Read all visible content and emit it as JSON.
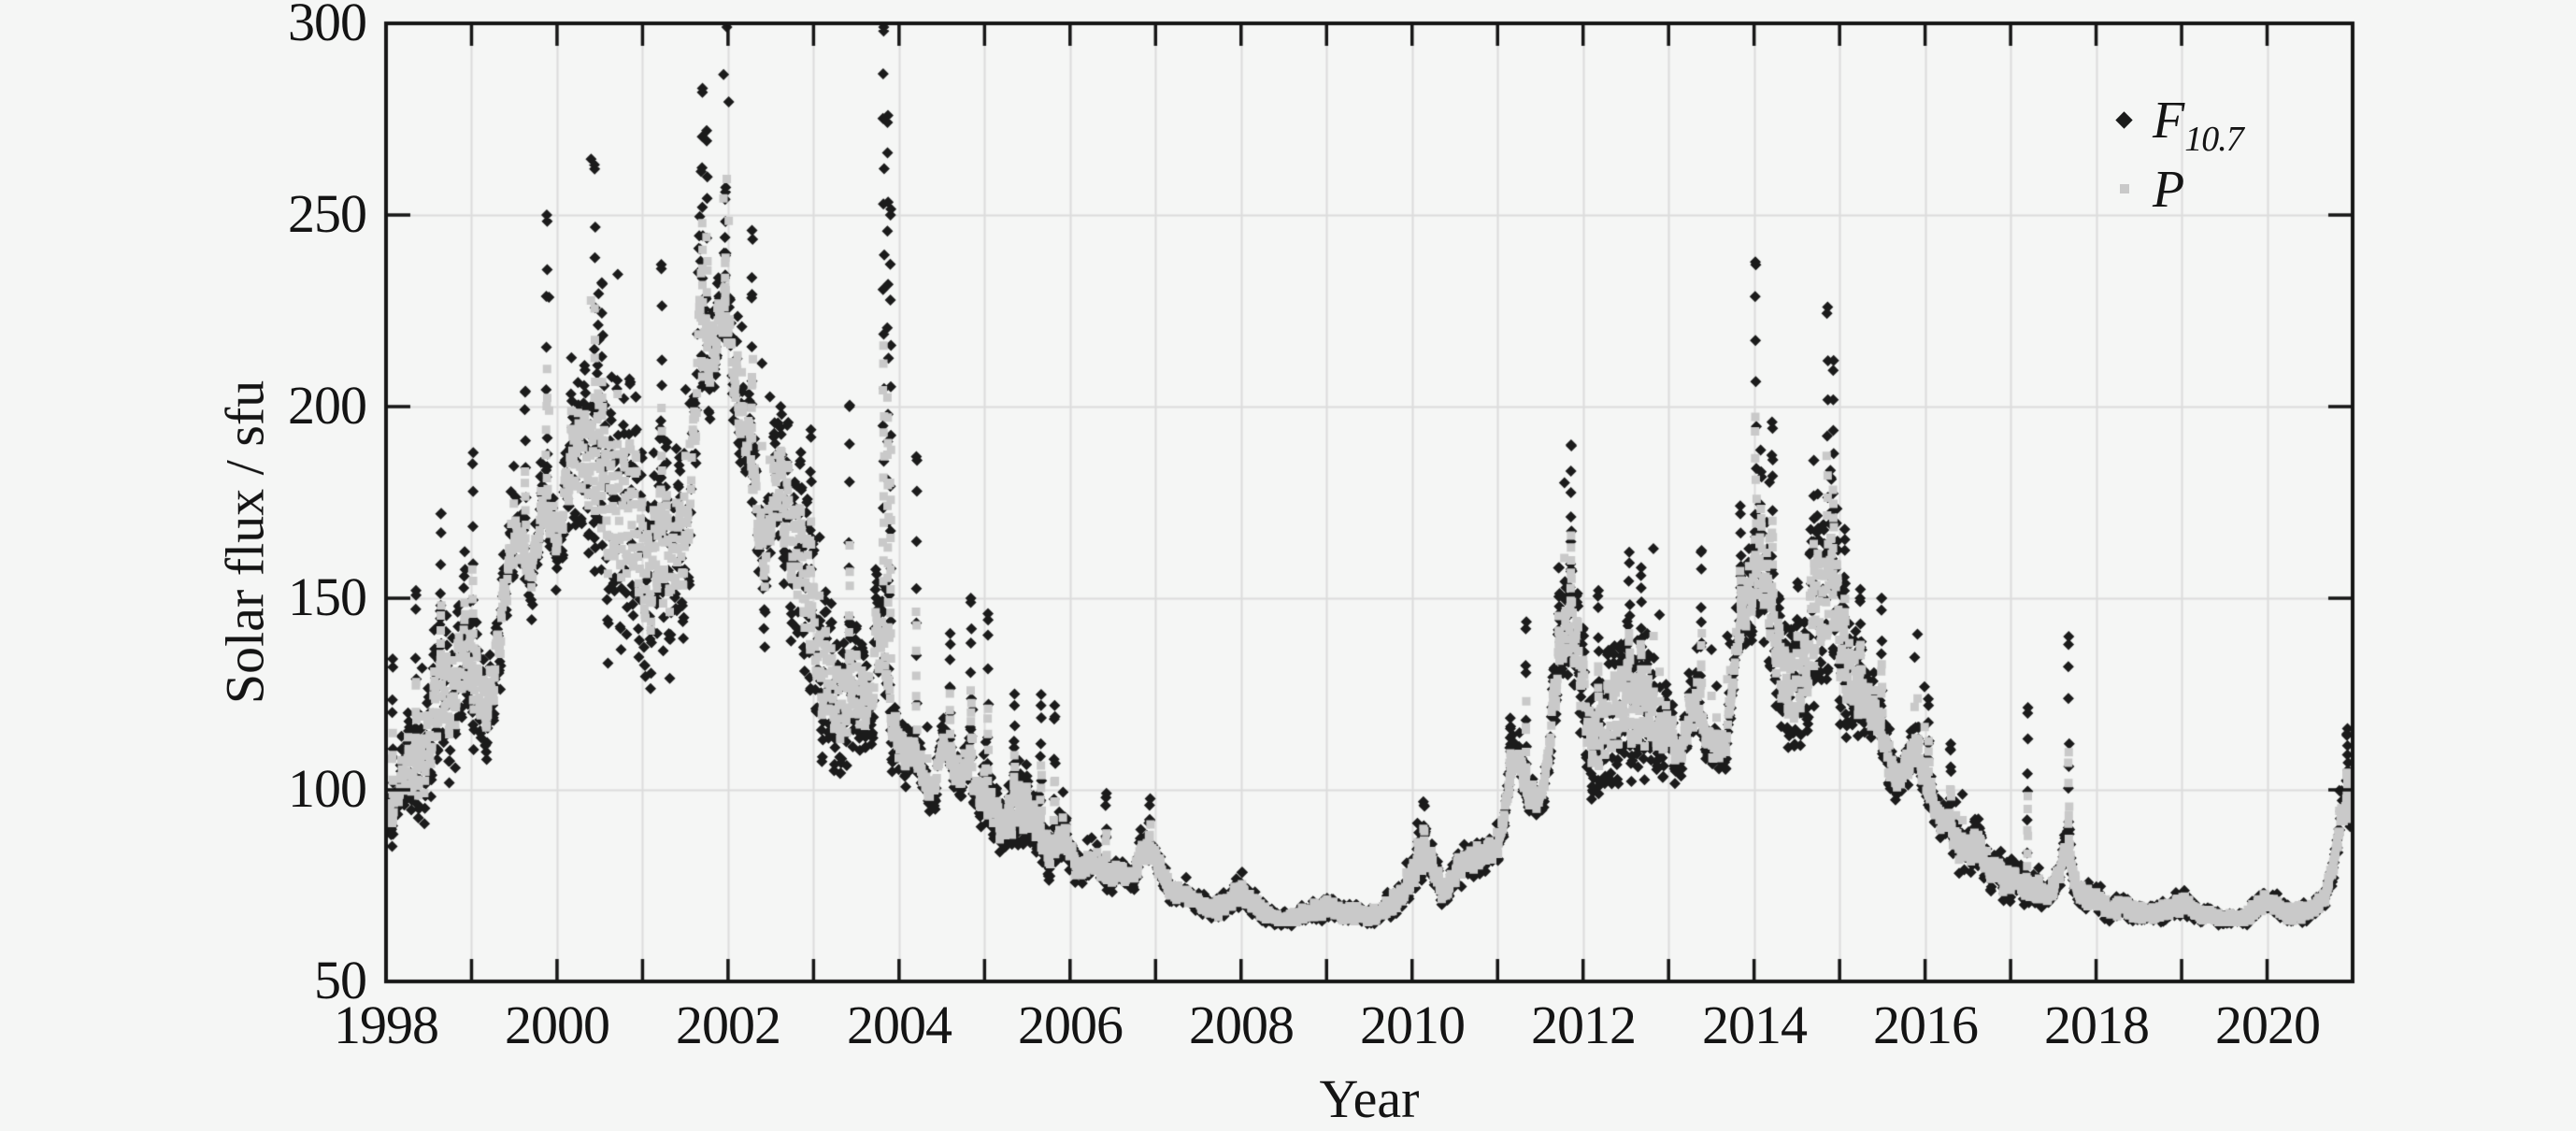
{
  "page": {
    "background": "#f5f6f5"
  },
  "figure": {
    "xlabel": "Year",
    "ylabel": "Solar flux / sfu",
    "yticks": [
      "50",
      "100",
      "150",
      "200",
      "250",
      "300"
    ],
    "xticks": [
      "1998",
      "2000",
      "2002",
      "2004",
      "2006",
      "2008",
      "2010",
      "2012",
      "2014",
      "2016",
      "2018",
      "2020"
    ],
    "legend": [
      {
        "marker": "diamond-icon",
        "color": "#1b1b1b",
        "label_main": "F",
        "label_sub": "10.7"
      },
      {
        "marker": "square-icon",
        "color": "#c9c9c9",
        "label_main": "P",
        "label_sub": ""
      }
    ]
  },
  "chart_data": {
    "type": "scatter",
    "title": "",
    "xlabel": "Year",
    "ylabel": "Solar flux / sfu",
    "xlim": [
      1998,
      2021
    ],
    "ylim": [
      50,
      300
    ],
    "x_gridline_interval_years": 1,
    "y_gridline_interval": 50,
    "x_tick_label_interval_years": 2,
    "grid": true,
    "gridline_color": "#dcdcdc",
    "box_color": "#161616",
    "legend_position": "top-right",
    "series": [
      {
        "name": "F10.7",
        "marker": "diamond",
        "color": "#1b1b1b",
        "cadence": "daily values shown as dense scatter with 27-day rotational modulation",
        "monthly_mean": {
          "start_year": 1998.0,
          "step_years": 0.08333,
          "values": [
            95,
            92,
            102,
            108,
            106,
            104,
            112,
            124,
            130,
            118,
            128,
            142,
            130,
            128,
            118,
            126,
            142,
            158,
            164,
            170,
            152,
            160,
            178,
            174,
            160,
            176,
            190,
            186,
            192,
            180,
            200,
            164,
            182,
            166,
            178,
            174,
            162,
            148,
            164,
            174,
            150,
            170,
            152,
            184,
            230,
            208,
            214,
            226,
            226,
            204,
            194,
            192,
            178,
            150,
            174,
            184,
            178,
            160,
            168,
            152,
            144,
            126,
            134,
            122,
            118,
            130,
            128,
            124,
            114,
            150,
            138,
            114,
            114,
            108,
            112,
            106,
            100,
            98,
            116,
            110,
            102,
            104,
            112,
            96,
            100,
            96,
            92,
            88,
            98,
            94,
            96,
            92,
            90,
            80,
            86,
            90,
            84,
            80,
            78,
            82,
            80,
            78,
            76,
            80,
            78,
            76,
            86,
            84,
            82,
            78,
            74,
            72,
            74,
            72,
            70,
            70,
            68,
            70,
            70,
            72,
            74,
            71,
            70,
            68,
            67,
            66,
            66,
            66,
            67,
            68,
            68,
            68,
            69,
            69,
            68,
            67,
            68,
            67,
            67,
            67,
            69,
            70,
            72,
            73,
            77,
            83,
            85,
            79,
            74,
            73,
            79,
            81,
            81,
            83,
            83,
            85,
            83,
            92,
            110,
            110,
            98,
            98,
            96,
            104,
            128,
            136,
            150,
            140,
            130,
            108,
            112,
            118,
            122,
            118,
            130,
            118,
            122,
            122,
            120,
            110,
            122,
            108,
            110,
            120,
            128,
            112,
            112,
            112,
            108,
            128,
            146,
            148,
            154,
            168,
            150,
            140,
            130,
            122,
            134,
            124,
            142,
            152,
            148,
            158,
            142,
            130,
            126,
            128,
            120,
            122,
            114,
            106,
            102,
            104,
            110,
            112,
            102,
            98,
            92,
            92,
            90,
            84,
            84,
            86,
            84,
            78,
            80,
            76,
            76,
            78,
            74,
            74,
            74,
            72,
            74,
            78,
            90,
            74,
            72,
            72,
            72,
            70,
            68,
            70,
            70,
            68,
            68,
            68,
            68,
            68,
            68,
            70,
            70,
            70,
            68,
            67,
            67,
            67,
            66,
            66,
            66,
            66,
            68,
            70,
            72,
            70,
            69,
            68,
            68,
            68,
            68,
            70,
            72,
            76,
            88,
            100,
            94
          ]
        },
        "notable_daily_spikes_x_y": [
          [
            1998.08,
            132
          ],
          [
            1998.35,
            152
          ],
          [
            1998.64,
            172
          ],
          [
            1999.02,
            188
          ],
          [
            1999.63,
            204
          ],
          [
            1999.88,
            250
          ],
          [
            2000.44,
            262
          ],
          [
            2000.53,
            232
          ],
          [
            2001.22,
            236
          ],
          [
            2001.7,
            282
          ],
          [
            2001.75,
            272
          ],
          [
            2001.97,
            256
          ],
          [
            2002.28,
            246
          ],
          [
            2002.97,
            192
          ],
          [
            2003.42,
            200
          ],
          [
            2003.82,
            298
          ],
          [
            2003.87,
            276
          ],
          [
            2003.9,
            250
          ],
          [
            2004.21,
            186
          ],
          [
            2004.6,
            138
          ],
          [
            2004.84,
            150
          ],
          [
            2005.04,
            146
          ],
          [
            2005.35,
            122
          ],
          [
            2005.66,
            122
          ],
          [
            2005.82,
            122
          ],
          [
            2006.42,
            98
          ],
          [
            2006.93,
            96
          ],
          [
            2010.14,
            96
          ],
          [
            2011.15,
            116
          ],
          [
            2011.33,
            142
          ],
          [
            2011.72,
            158
          ],
          [
            2011.86,
            190
          ],
          [
            2012.18,
            152
          ],
          [
            2012.54,
            162
          ],
          [
            2012.68,
            158
          ],
          [
            2013.38,
            162
          ],
          [
            2013.84,
            172
          ],
          [
            2014.02,
            237
          ],
          [
            2014.21,
            196
          ],
          [
            2014.7,
            186
          ],
          [
            2014.86,
            226
          ],
          [
            2014.93,
            212
          ],
          [
            2015.06,
            168
          ],
          [
            2015.24,
            150
          ],
          [
            2015.49,
            150
          ],
          [
            2016.04,
            122
          ],
          [
            2016.3,
            112
          ],
          [
            2017.2,
            120
          ],
          [
            2017.68,
            140
          ],
          [
            2020.94,
            116
          ]
        ],
        "value_floor": 65,
        "max_value_shown": 298
      },
      {
        "name": "P",
        "marker": "square",
        "color": "#c9c9c9",
        "definition": "derived proxy: P(t) = (F10.7 daily + 81-day smoothed F10.7) / 2, forms smoother gray band",
        "min_value_shown": 66
      }
    ]
  }
}
